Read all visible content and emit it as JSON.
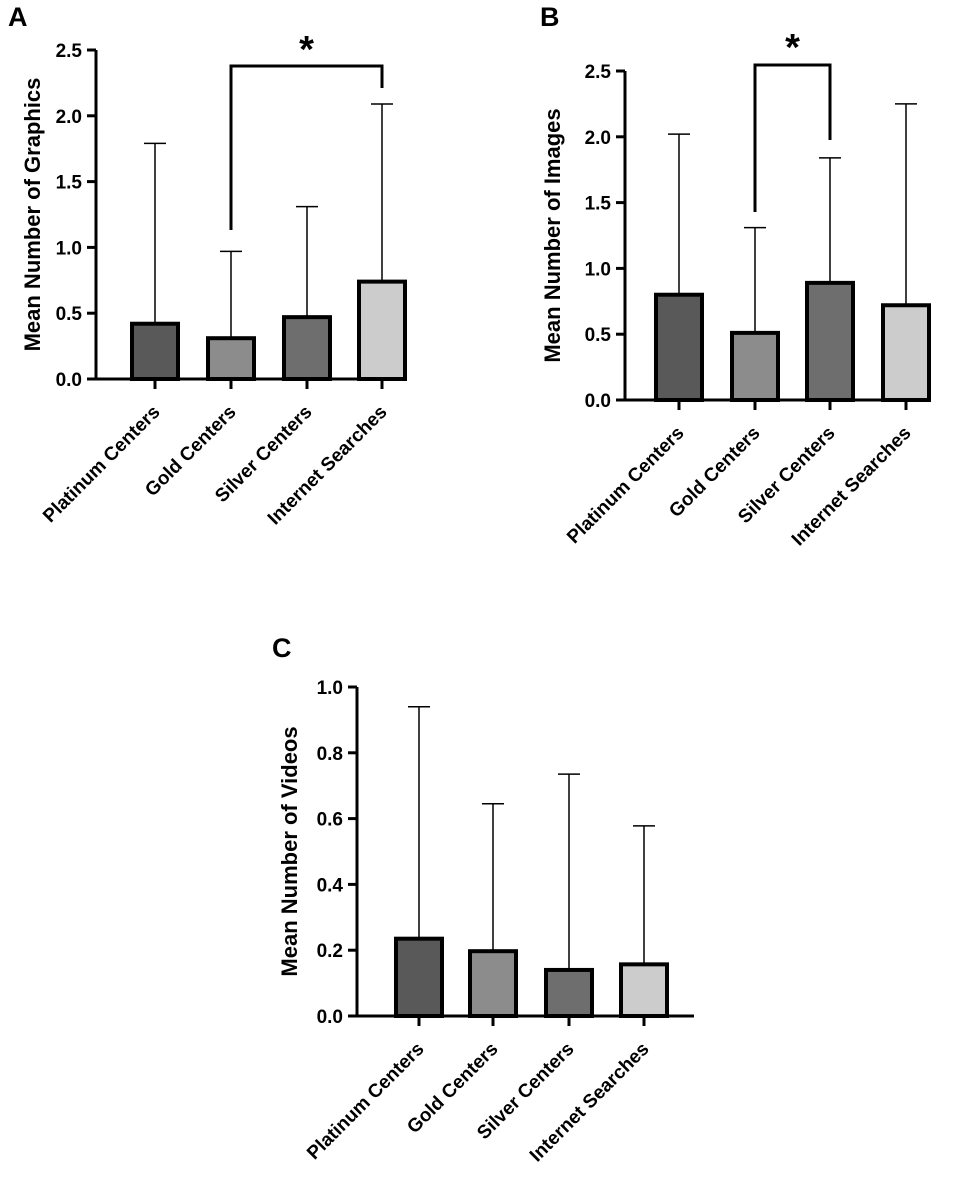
{
  "figure": {
    "bar_colors": [
      "#595959",
      "#8c8c8c",
      "#6e6e6e",
      "#cccccc"
    ],
    "outline_color": "#000000"
  },
  "chart_data": [
    {
      "panel": "A",
      "type": "bar",
      "ylabel": "Mean Number of Graphics",
      "categories": [
        "Platinum Centers",
        "Gold Centers",
        "Silver Centers",
        "Internet Searches"
      ],
      "values": [
        0.42,
        0.31,
        0.47,
        0.74
      ],
      "error_upper": [
        1.79,
        0.97,
        1.31,
        2.09
      ],
      "ylim": [
        0,
        2.5
      ],
      "yticks": [
        "0.0",
        "0.5",
        "1.0",
        "1.5",
        "2.0",
        "2.5"
      ],
      "significance": {
        "from": "Gold Centers",
        "to": "Internet Searches",
        "label": "*"
      }
    },
    {
      "panel": "B",
      "type": "bar",
      "ylabel": "Mean Number of Images",
      "categories": [
        "Platinum Centers",
        "Gold Centers",
        "Silver Centers",
        "Internet Searches"
      ],
      "values": [
        0.8,
        0.51,
        0.89,
        0.72
      ],
      "error_upper": [
        2.02,
        1.31,
        1.84,
        2.25
      ],
      "ylim": [
        0,
        2.5
      ],
      "yticks": [
        "0.0",
        "0.5",
        "1.0",
        "1.5",
        "2.0",
        "2.5"
      ],
      "significance": {
        "from": "Gold Centers",
        "to": "Silver Centers",
        "label": "*"
      }
    },
    {
      "panel": "C",
      "type": "bar",
      "ylabel": "Mean Number of Videos",
      "categories": [
        "Platinum Centers",
        "Gold Centers",
        "Silver Centers",
        "Internet Searches"
      ],
      "values": [
        0.235,
        0.197,
        0.14,
        0.157
      ],
      "error_upper": [
        0.94,
        0.645,
        0.735,
        0.578
      ],
      "ylim": [
        0,
        1.0
      ],
      "yticks": [
        "0.0",
        "0.2",
        "0.4",
        "0.6",
        "0.8",
        "1.0"
      ]
    }
  ]
}
